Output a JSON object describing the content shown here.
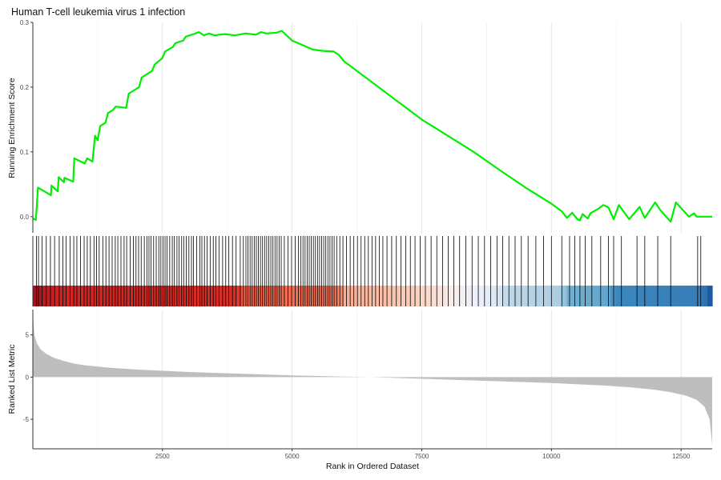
{
  "chart_data": {
    "type": "line",
    "title": "Human T-cell leukemia virus 1 infection",
    "xlabel": "Rank in Ordered Dataset",
    "x_ticks": [
      2500,
      5000,
      7500,
      10000,
      12500
    ],
    "x_range": [
      1,
      13100
    ],
    "grid": "vertical",
    "panels": [
      {
        "name": "running-score",
        "ylabel": "Running Enrichment Score",
        "ylim": [
          -0.025,
          0.3
        ],
        "y_ticks": [
          0.0,
          0.1,
          0.2,
          0.3
        ],
        "y_tick_labels": [
          "0.0",
          "0.1",
          "0.2",
          "0.3"
        ],
        "line_color": "#00ee00",
        "series": [
          {
            "x": [
              1,
              60,
              100,
              350,
              360,
              480,
              500,
              600,
              610,
              780,
              800,
              1000,
              1050,
              1150,
              1200,
              1250,
              1300,
              1400,
              1450,
              1550,
              1600,
              1800,
              1850,
              2050,
              2100,
              2300,
              2350,
              2500,
              2550,
              2700,
              2750,
              2900,
              2950,
              3100,
              3200,
              3300,
              3400,
              3500,
              3700,
              3900,
              4100,
              4300,
              4400,
              4500,
              4700,
              4800,
              5000,
              5200,
              5400,
              5600,
              5800,
              5900,
              6000,
              6500,
              7000,
              7500,
              8000,
              8500,
              9000,
              9500,
              10000,
              10200,
              10300,
              10400,
              10500,
              10550,
              10600,
              10700,
              10750,
              10900,
              11000,
              11100,
              11200,
              11300,
              11500,
              11700,
              11800,
              12000,
              12100,
              12300,
              12400,
              12650,
              12750,
              12800,
              13100
            ],
            "values": [
              -0.003,
              -0.005,
              0.045,
              0.033,
              0.048,
              0.039,
              0.061,
              0.053,
              0.06,
              0.054,
              0.09,
              0.082,
              0.09,
              0.085,
              0.125,
              0.118,
              0.14,
              0.145,
              0.16,
              0.165,
              0.17,
              0.168,
              0.19,
              0.2,
              0.215,
              0.225,
              0.235,
              0.245,
              0.255,
              0.262,
              0.268,
              0.272,
              0.278,
              0.282,
              0.285,
              0.28,
              0.283,
              0.28,
              0.282,
              0.28,
              0.283,
              0.281,
              0.285,
              0.283,
              0.284,
              0.287,
              0.272,
              0.265,
              0.258,
              0.256,
              0.255,
              0.25,
              0.24,
              0.21,
              0.18,
              0.15,
              0.125,
              0.1,
              0.072,
              0.045,
              0.02,
              0.008,
              -0.002,
              0.006,
              -0.004,
              -0.006,
              0.004,
              -0.003,
              0.005,
              0.012,
              0.018,
              0.014,
              -0.004,
              0.018,
              -0.004,
              0.015,
              -0.002,
              0.022,
              0.01,
              -0.008,
              0.022,
              0.0,
              0.005,
              0.0,
              0.0
            ]
          }
        ]
      },
      {
        "name": "gene-hits",
        "hit_positions": [
          70,
          110,
          180,
          260,
          340,
          420,
          510,
          580,
          640,
          720,
          790,
          850,
          920,
          990,
          1050,
          1110,
          1180,
          1230,
          1280,
          1350,
          1410,
          1470,
          1530,
          1590,
          1640,
          1700,
          1760,
          1810,
          1880,
          1940,
          1990,
          2040,
          2090,
          2150,
          2200,
          2240,
          2280,
          2330,
          2380,
          2430,
          2470,
          2510,
          2550,
          2590,
          2640,
          2690,
          2730,
          2780,
          2820,
          2870,
          2910,
          2960,
          3010,
          3060,
          3100,
          3160,
          3220,
          3260,
          3310,
          3360,
          3420,
          3480,
          3530,
          3590,
          3660,
          3720,
          3780,
          3850,
          3920,
          4000,
          4060,
          4110,
          4150,
          4190,
          4230,
          4270,
          4310,
          4350,
          4390,
          4430,
          4470,
          4510,
          4550,
          4590,
          4630,
          4670,
          4710,
          4750,
          4790,
          4850,
          4920,
          4990,
          5060,
          5120,
          5170,
          5210,
          5250,
          5290,
          5330,
          5370,
          5410,
          5450,
          5490,
          5530,
          5570,
          5610,
          5650,
          5690,
          5730,
          5770,
          5810,
          5860,
          5920,
          5980,
          6050,
          6120,
          6190,
          6260,
          6330,
          6400,
          6470,
          6540,
          6610,
          6680,
          6750,
          6830,
          6920,
          7010,
          7100,
          7190,
          7280,
          7370,
          7470,
          7570,
          7680,
          7790,
          7900,
          8010,
          8120,
          8230,
          8350,
          8470,
          8590,
          8710,
          8830,
          8950,
          9060,
          9180,
          9300,
          9420,
          9550,
          9700,
          9850,
          10000,
          10200,
          10350,
          10450,
          10550,
          10650,
          10780,
          10950,
          11100,
          11200,
          11350,
          11650,
          11800,
          12050,
          12300,
          12820,
          12880
        ]
      },
      {
        "name": "ranked-metric",
        "ylabel": "Ranked List Metric",
        "ylim": [
          -8.5,
          8
        ],
        "y_ticks": [
          -5,
          0,
          5
        ],
        "y_tick_labels": [
          "-5",
          "0",
          "5"
        ],
        "fill_color": "#bebebe",
        "series": [
          {
            "x": [
              1,
              30,
              80,
              150,
              250,
              400,
              600,
              800,
              1000,
              1500,
              2000,
              3000,
              4000,
              5000,
              6000,
              6500,
              7000,
              8000,
              9000,
              10000,
              11000,
              11500,
              12000,
              12300,
              12600,
              12800,
              12950,
              13050,
              13100
            ],
            "values": [
              7.5,
              5.0,
              4.0,
              3.3,
              2.8,
              2.3,
              1.9,
              1.6,
              1.4,
              1.1,
              0.9,
              0.6,
              0.4,
              0.2,
              0.05,
              0.0,
              -0.1,
              -0.3,
              -0.5,
              -0.7,
              -1.0,
              -1.2,
              -1.5,
              -1.8,
              -2.2,
              -2.7,
              -3.5,
              -5.0,
              -8.0
            ]
          }
        ]
      }
    ]
  }
}
